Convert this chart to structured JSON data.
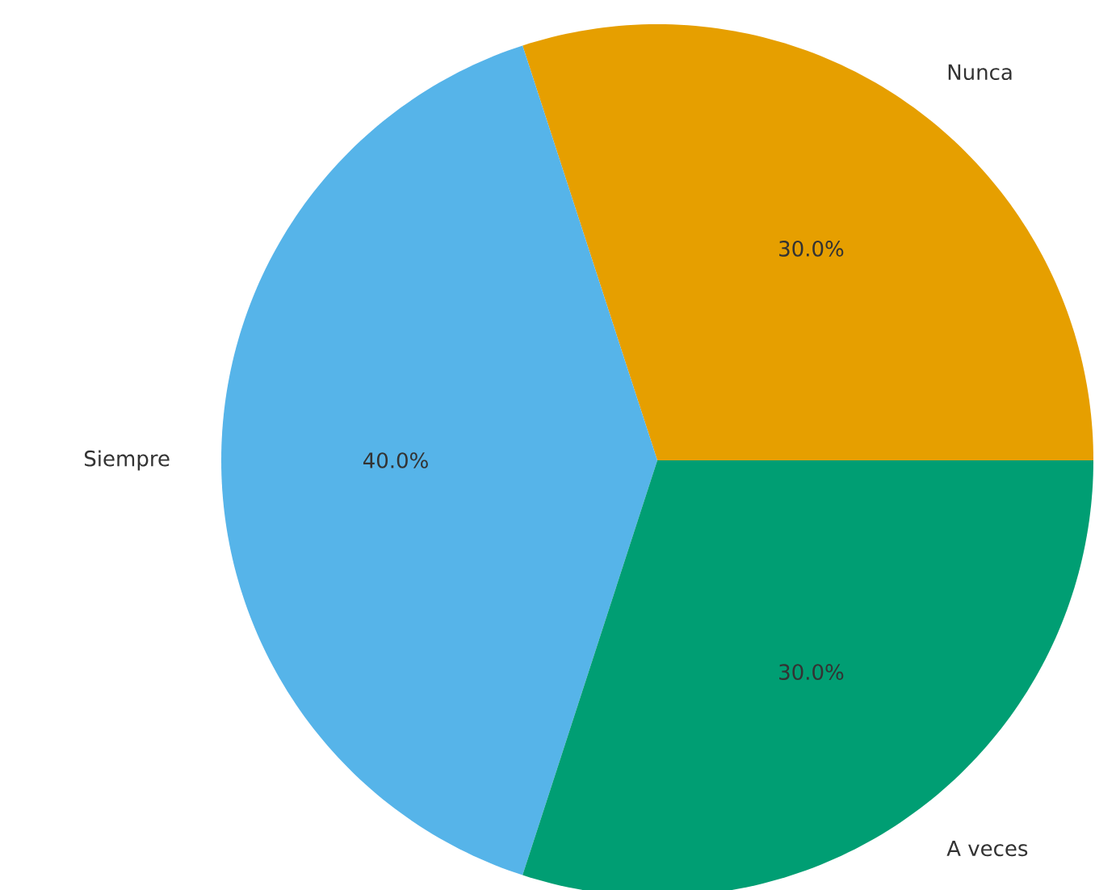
{
  "chart_data": {
    "type": "pie",
    "categories": [
      "Nunca",
      "Siempre",
      "A veces"
    ],
    "values": [
      30,
      40,
      30
    ],
    "colors": [
      "#e69f00",
      "#56b4e9",
      "#009e73"
    ],
    "value_labels": [
      "30.0%",
      "40.0%",
      "30.0%"
    ]
  }
}
